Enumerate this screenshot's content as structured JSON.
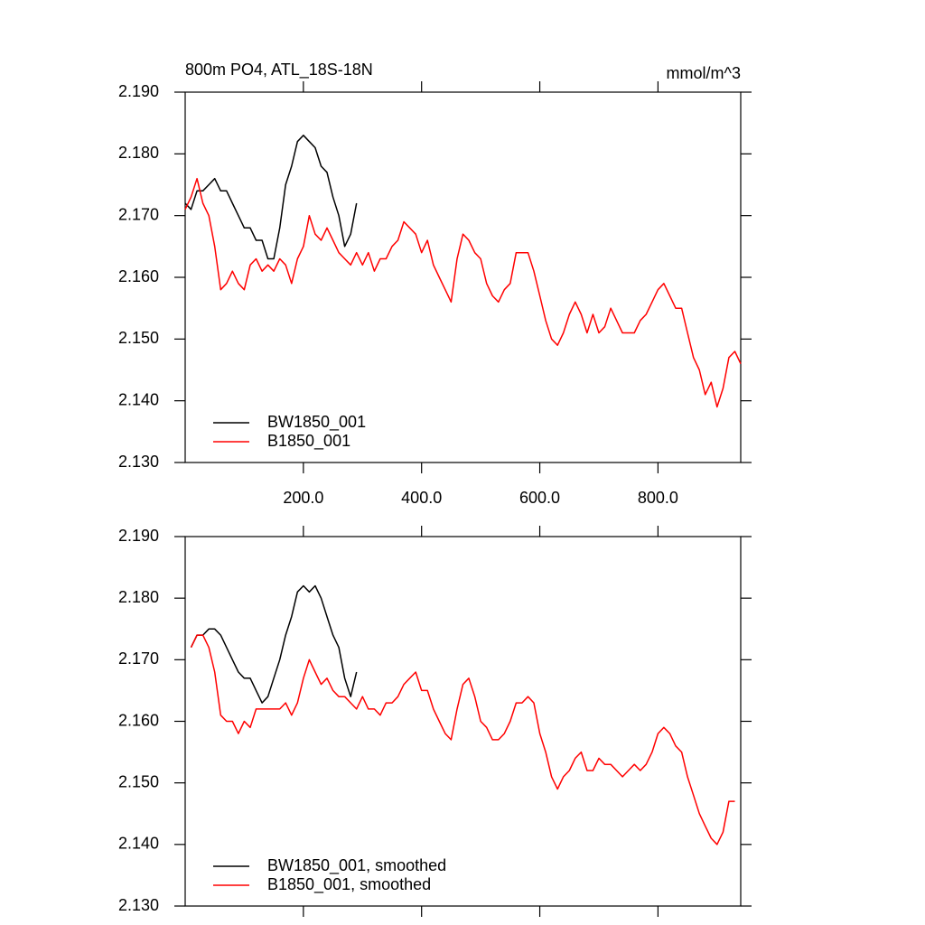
{
  "chart_data": [
    {
      "type": "line",
      "title": "800m PO4, ATL_18S-18N",
      "units": "mmol/m^3",
      "xlim": [
        0,
        940
      ],
      "ylim": [
        2.13,
        2.19
      ],
      "xticks": [
        {
          "value": 200,
          "label": "200.0"
        },
        {
          "value": 400,
          "label": "400.0"
        },
        {
          "value": 600,
          "label": "600.0"
        },
        {
          "value": 800,
          "label": "800.0"
        }
      ],
      "show_xtick_labels": true,
      "yticks": [
        {
          "value": 2.13,
          "label": "2.130"
        },
        {
          "value": 2.14,
          "label": "2.140"
        },
        {
          "value": 2.15,
          "label": "2.150"
        },
        {
          "value": 2.16,
          "label": "2.160"
        },
        {
          "value": 2.17,
          "label": "2.170"
        },
        {
          "value": 2.18,
          "label": "2.180"
        },
        {
          "value": 2.19,
          "label": "2.190"
        }
      ],
      "legend": "lower left",
      "series": [
        {
          "name": "BW1850_001",
          "color": "#000000",
          "x": [
            0,
            10,
            20,
            30,
            40,
            50,
            60,
            70,
            80,
            90,
            100,
            110,
            120,
            130,
            140,
            150,
            160,
            170,
            180,
            190,
            200,
            210,
            220,
            230,
            240,
            250,
            260,
            270,
            280,
            290
          ],
          "values": [
            2.172,
            2.171,
            2.174,
            2.174,
            2.175,
            2.176,
            2.174,
            2.174,
            2.172,
            2.17,
            2.168,
            2.168,
            2.166,
            2.166,
            2.163,
            2.163,
            2.168,
            2.175,
            2.178,
            2.182,
            2.183,
            2.182,
            2.181,
            2.178,
            2.177,
            2.173,
            2.17,
            2.165,
            2.167,
            2.172
          ]
        },
        {
          "name": "B1850_001",
          "color": "#ff0000",
          "x": [
            0,
            10,
            20,
            30,
            40,
            50,
            60,
            70,
            80,
            90,
            100,
            110,
            120,
            130,
            140,
            150,
            160,
            170,
            180,
            190,
            200,
            210,
            220,
            230,
            240,
            250,
            260,
            270,
            280,
            290,
            300,
            310,
            320,
            330,
            340,
            350,
            360,
            370,
            380,
            390,
            400,
            410,
            420,
            430,
            440,
            450,
            460,
            470,
            480,
            490,
            500,
            510,
            520,
            530,
            540,
            550,
            560,
            570,
            580,
            590,
            600,
            610,
            620,
            630,
            640,
            650,
            660,
            670,
            680,
            690,
            700,
            710,
            720,
            730,
            740,
            750,
            760,
            770,
            780,
            790,
            800,
            810,
            820,
            830,
            840,
            850,
            860,
            870,
            880,
            890,
            900,
            910,
            920,
            930,
            940
          ],
          "values": [
            2.171,
            2.173,
            2.176,
            2.172,
            2.17,
            2.165,
            2.158,
            2.159,
            2.161,
            2.159,
            2.158,
            2.162,
            2.163,
            2.161,
            2.162,
            2.161,
            2.163,
            2.162,
            2.159,
            2.163,
            2.165,
            2.17,
            2.167,
            2.166,
            2.168,
            2.166,
            2.164,
            2.163,
            2.162,
            2.164,
            2.162,
            2.164,
            2.161,
            2.163,
            2.163,
            2.165,
            2.166,
            2.169,
            2.168,
            2.167,
            2.164,
            2.166,
            2.162,
            2.16,
            2.158,
            2.156,
            2.163,
            2.167,
            2.166,
            2.164,
            2.163,
            2.159,
            2.157,
            2.156,
            2.158,
            2.159,
            2.164,
            2.164,
            2.164,
            2.161,
            2.157,
            2.153,
            2.15,
            2.149,
            2.151,
            2.154,
            2.156,
            2.154,
            2.151,
            2.154,
            2.151,
            2.152,
            2.155,
            2.153,
            2.151,
            2.151,
            2.151,
            2.153,
            2.154,
            2.156,
            2.158,
            2.159,
            2.157,
            2.155,
            2.155,
            2.151,
            2.147,
            2.145,
            2.141,
            2.143,
            2.139,
            2.142,
            2.147,
            2.148,
            2.146
          ]
        }
      ]
    },
    {
      "type": "line",
      "xlim": [
        0,
        940
      ],
      "ylim": [
        2.13,
        2.19
      ],
      "xticks": [
        200,
        400,
        600,
        800
      ],
      "show_xtick_labels": false,
      "yticks": [
        {
          "value": 2.13,
          "label": "2.130"
        },
        {
          "value": 2.14,
          "label": "2.140"
        },
        {
          "value": 2.15,
          "label": "2.150"
        },
        {
          "value": 2.16,
          "label": "2.160"
        },
        {
          "value": 2.17,
          "label": "2.170"
        },
        {
          "value": 2.18,
          "label": "2.180"
        },
        {
          "value": 2.19,
          "label": "2.190"
        }
      ],
      "legend": "lower left",
      "series": [
        {
          "name": "BW1850_001, smoothed",
          "color": "#000000",
          "x": [
            10,
            20,
            30,
            40,
            50,
            60,
            70,
            80,
            90,
            100,
            110,
            120,
            130,
            140,
            150,
            160,
            170,
            180,
            190,
            200,
            210,
            220,
            230,
            240,
            250,
            260,
            270,
            280,
            290
          ],
          "values": [
            2.172,
            2.174,
            2.174,
            2.175,
            2.175,
            2.174,
            2.172,
            2.17,
            2.168,
            2.167,
            2.167,
            2.165,
            2.163,
            2.164,
            2.167,
            2.17,
            2.174,
            2.177,
            2.181,
            2.182,
            2.181,
            2.182,
            2.18,
            2.177,
            2.174,
            2.172,
            2.167,
            2.164,
            2.168
          ]
        },
        {
          "name": "B1850_001, smoothed",
          "color": "#ff0000",
          "x": [
            10,
            20,
            30,
            40,
            50,
            60,
            70,
            80,
            90,
            100,
            110,
            120,
            130,
            140,
            150,
            160,
            170,
            180,
            190,
            200,
            210,
            220,
            230,
            240,
            250,
            260,
            270,
            280,
            290,
            300,
            310,
            320,
            330,
            340,
            350,
            360,
            370,
            380,
            390,
            400,
            410,
            420,
            430,
            440,
            450,
            460,
            470,
            480,
            490,
            500,
            510,
            520,
            530,
            540,
            550,
            560,
            570,
            580,
            590,
            600,
            610,
            620,
            630,
            640,
            650,
            660,
            670,
            680,
            690,
            700,
            710,
            720,
            730,
            740,
            750,
            760,
            770,
            780,
            790,
            800,
            810,
            820,
            830,
            840,
            850,
            860,
            870,
            880,
            890,
            900,
            910,
            920,
            930
          ],
          "values": [
            2.172,
            2.174,
            2.174,
            2.172,
            2.168,
            2.161,
            2.16,
            2.16,
            2.158,
            2.16,
            2.159,
            2.162,
            2.162,
            2.162,
            2.162,
            2.162,
            2.163,
            2.161,
            2.163,
            2.167,
            2.17,
            2.168,
            2.166,
            2.167,
            2.165,
            2.164,
            2.164,
            2.163,
            2.162,
            2.164,
            2.162,
            2.162,
            2.161,
            2.163,
            2.163,
            2.164,
            2.166,
            2.167,
            2.168,
            2.165,
            2.165,
            2.162,
            2.16,
            2.158,
            2.157,
            2.162,
            2.166,
            2.167,
            2.164,
            2.16,
            2.159,
            2.157,
            2.157,
            2.158,
            2.16,
            2.163,
            2.163,
            2.164,
            2.163,
            2.158,
            2.155,
            2.151,
            2.149,
            2.151,
            2.152,
            2.154,
            2.155,
            2.152,
            2.152,
            2.154,
            2.153,
            2.153,
            2.152,
            2.151,
            2.152,
            2.153,
            2.152,
            2.153,
            2.155,
            2.158,
            2.159,
            2.158,
            2.156,
            2.155,
            2.151,
            2.148,
            2.145,
            2.143,
            2.141,
            2.14,
            2.142,
            2.147,
            2.147
          ]
        }
      ]
    }
  ]
}
